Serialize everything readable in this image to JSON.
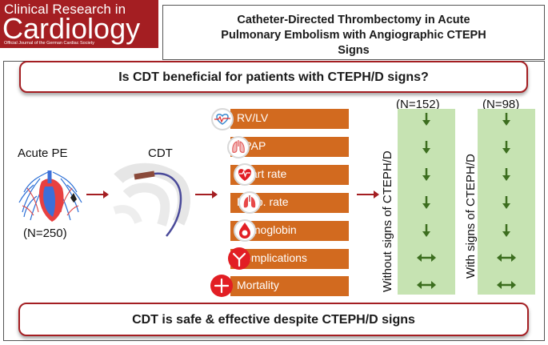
{
  "logo": {
    "line1": "Clinical Research in",
    "line2": "Cardiology",
    "line3": "Official Journal of the German Cardiac Society"
  },
  "title": {
    "line1": "Catheter-Directed Thrombectomy in Acute",
    "line2": "Pulmonary Embolism with Angiographic CTEPH",
    "line3": "Signs"
  },
  "question": "Is CDT beneficial for patients with CTEPH/D signs?",
  "conclusion": "CDT is safe & effective despite CTEPH/D signs",
  "flow": {
    "acute_pe_label": "Acute PE",
    "acute_pe_n": "(N=250)",
    "cdt_label": "CDT"
  },
  "outcomes": [
    {
      "label": "RV/LV",
      "icon": "heart-monitor-icon"
    },
    {
      "label": "SPAP",
      "icon": "lungs-icon"
    },
    {
      "label": "Heart rate",
      "icon": "heart-rate-icon"
    },
    {
      "label": "Resp. rate",
      "icon": "lungs-respiration-icon"
    },
    {
      "label": "Hemoglobin",
      "icon": "blood-drop-icon"
    },
    {
      "label": "Complications",
      "icon": "complications-icon"
    },
    {
      "label": "Mortality",
      "icon": "cross-icon"
    }
  ],
  "groups": [
    {
      "n": "(N=152)",
      "label": "Without signs of CTEPH/D",
      "results": [
        "down",
        "down",
        "down",
        "down",
        "down",
        "no-change",
        "no-change"
      ]
    },
    {
      "n": "(N=98)",
      "label": "With signs of CTEPH/D",
      "results": [
        "down",
        "down",
        "down",
        "down",
        "down",
        "no-change",
        "no-change"
      ]
    }
  ],
  "colors": {
    "brand_red": "#a41e22",
    "outcome_orange": "#d26a1f",
    "result_green_bg": "#c6e3b2",
    "arrow_green": "#3c6e1f"
  }
}
